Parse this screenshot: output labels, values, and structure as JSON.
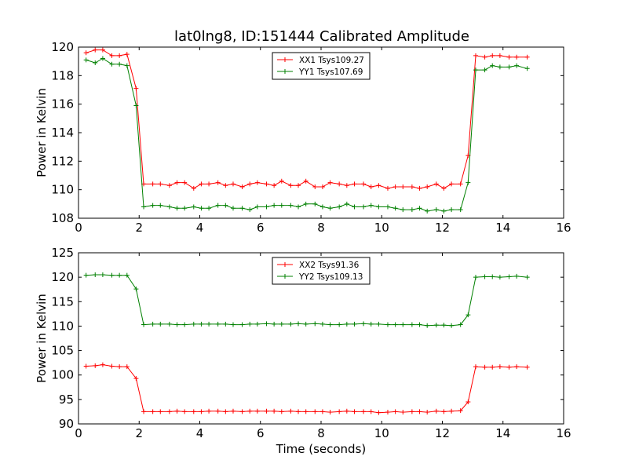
{
  "title": "lat0lng8, ID:151444 Calibrated Amplitude",
  "chart_data": [
    {
      "type": "line",
      "xlabel": "",
      "ylabel": "Power in Kelvin",
      "xlim": [
        0,
        16
      ],
      "ylim": [
        108,
        120
      ],
      "xticks": [
        "0",
        "2",
        "4",
        "6",
        "8",
        "10",
        "12",
        "14",
        "16"
      ],
      "yticks": [
        "108",
        "110",
        "112",
        "114",
        "116",
        "118",
        "120"
      ],
      "legend_position": "top-center",
      "x": [
        0.25,
        0.55,
        0.8,
        1.1,
        1.35,
        1.6,
        1.9,
        2.15,
        2.45,
        2.7,
        3.0,
        3.25,
        3.5,
        3.8,
        4.05,
        4.3,
        4.6,
        4.85,
        5.1,
        5.4,
        5.65,
        5.9,
        6.2,
        6.45,
        6.7,
        7.0,
        7.25,
        7.5,
        7.8,
        8.05,
        8.3,
        8.6,
        8.85,
        9.1,
        9.4,
        9.65,
        9.9,
        10.2,
        10.45,
        10.7,
        11.0,
        11.25,
        11.5,
        11.8,
        12.05,
        12.3,
        12.6,
        12.85,
        13.1,
        13.4,
        13.65,
        13.9,
        14.2,
        14.45,
        14.8
      ],
      "series": [
        {
          "name": "XX1 Tsys109.27",
          "color": "#ff0000",
          "values": [
            119.6,
            119.8,
            119.8,
            119.4,
            119.4,
            119.5,
            117.1,
            110.4,
            110.4,
            110.4,
            110.3,
            110.5,
            110.5,
            110.1,
            110.4,
            110.4,
            110.5,
            110.3,
            110.4,
            110.2,
            110.4,
            110.5,
            110.4,
            110.3,
            110.6,
            110.3,
            110.3,
            110.6,
            110.2,
            110.2,
            110.5,
            110.4,
            110.3,
            110.4,
            110.4,
            110.2,
            110.3,
            110.1,
            110.2,
            110.2,
            110.2,
            110.1,
            110.2,
            110.4,
            110.1,
            110.4,
            110.4,
            112.4,
            119.4,
            119.3,
            119.4,
            119.4,
            119.3,
            119.3,
            119.3
          ]
        },
        {
          "name": "YY1 Tsys107.69",
          "color": "#008000",
          "values": [
            119.1,
            118.9,
            119.2,
            118.8,
            118.8,
            118.7,
            115.9,
            108.8,
            108.9,
            108.9,
            108.8,
            108.7,
            108.7,
            108.8,
            108.7,
            108.7,
            108.9,
            108.9,
            108.7,
            108.7,
            108.6,
            108.8,
            108.8,
            108.9,
            108.9,
            108.9,
            108.8,
            109.0,
            109.0,
            108.8,
            108.7,
            108.8,
            109.0,
            108.8,
            108.8,
            108.9,
            108.8,
            108.8,
            108.7,
            108.6,
            108.6,
            108.7,
            108.5,
            108.6,
            108.5,
            108.6,
            108.6,
            110.5,
            118.4,
            118.4,
            118.7,
            118.6,
            118.6,
            118.7,
            118.5
          ]
        }
      ]
    },
    {
      "type": "line",
      "xlabel": "Time (seconds)",
      "ylabel": "Power in Kelvin",
      "xlim": [
        0,
        16
      ],
      "ylim": [
        90,
        125
      ],
      "xticks": [
        "0",
        "2",
        "4",
        "6",
        "8",
        "10",
        "12",
        "14",
        "16"
      ],
      "yticks": [
        "90",
        "95",
        "100",
        "105",
        "110",
        "115",
        "120",
        "125"
      ],
      "legend_position": "top-center",
      "x": [
        0.25,
        0.55,
        0.8,
        1.1,
        1.35,
        1.6,
        1.9,
        2.15,
        2.45,
        2.7,
        3.0,
        3.25,
        3.5,
        3.8,
        4.05,
        4.3,
        4.6,
        4.85,
        5.1,
        5.4,
        5.65,
        5.9,
        6.2,
        6.45,
        6.7,
        7.0,
        7.25,
        7.5,
        7.8,
        8.05,
        8.3,
        8.6,
        8.85,
        9.1,
        9.4,
        9.65,
        9.9,
        10.2,
        10.45,
        10.7,
        11.0,
        11.25,
        11.5,
        11.8,
        12.05,
        12.3,
        12.6,
        12.85,
        13.1,
        13.4,
        13.65,
        13.9,
        14.2,
        14.45,
        14.8
      ],
      "series": [
        {
          "name": "XX2 Tsys91.36",
          "color": "#ff0000",
          "values": [
            101.8,
            101.9,
            102.1,
            101.8,
            101.7,
            101.7,
            99.3,
            92.5,
            92.5,
            92.5,
            92.5,
            92.6,
            92.5,
            92.5,
            92.5,
            92.6,
            92.6,
            92.5,
            92.6,
            92.5,
            92.6,
            92.6,
            92.6,
            92.6,
            92.5,
            92.6,
            92.5,
            92.5,
            92.5,
            92.5,
            92.4,
            92.5,
            92.6,
            92.5,
            92.5,
            92.5,
            92.3,
            92.4,
            92.5,
            92.4,
            92.5,
            92.5,
            92.4,
            92.6,
            92.5,
            92.6,
            92.7,
            94.5,
            101.7,
            101.6,
            101.6,
            101.7,
            101.6,
            101.7,
            101.6
          ]
        },
        {
          "name": "YY2 Tsys109.13",
          "color": "#008000",
          "values": [
            120.4,
            120.5,
            120.5,
            120.4,
            120.4,
            120.4,
            117.6,
            110.3,
            110.4,
            110.4,
            110.4,
            110.3,
            110.3,
            110.4,
            110.4,
            110.4,
            110.4,
            110.4,
            110.3,
            110.3,
            110.4,
            110.4,
            110.5,
            110.4,
            110.4,
            110.4,
            110.5,
            110.4,
            110.5,
            110.4,
            110.3,
            110.3,
            110.4,
            110.4,
            110.5,
            110.4,
            110.4,
            110.3,
            110.3,
            110.3,
            110.3,
            110.3,
            110.1,
            110.2,
            110.2,
            110.1,
            110.3,
            112.3,
            120.0,
            120.1,
            120.1,
            120.0,
            120.1,
            120.2,
            120.0
          ]
        }
      ]
    }
  ]
}
